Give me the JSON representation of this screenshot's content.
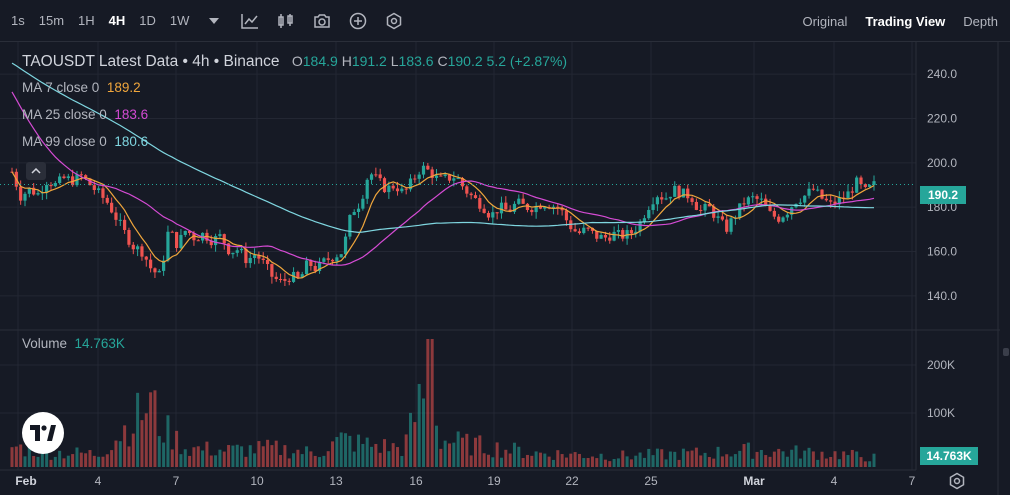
{
  "toolbar": {
    "timeframes": [
      "1s",
      "15m",
      "1H",
      "4H",
      "1D",
      "1W"
    ],
    "active_timeframe": "4H",
    "icons": [
      "chevron-down-icon",
      "indicators-icon",
      "chart-type-icon",
      "screenshot-icon",
      "add-icon",
      "settings-icon"
    ],
    "views": [
      "Original",
      "Trading View",
      "Depth"
    ],
    "active_view": "Trading View"
  },
  "legend": {
    "symbol_line": "TAOUSDT Latest Data • 4h • Binance",
    "o_label": "O",
    "o_value": "184.9",
    "h_label": "H",
    "h_value": "191.2",
    "l_label": "L",
    "l_value": "183.6",
    "c_label": "C",
    "c_value": "190.2",
    "change": "5.2 (+2.87%)",
    "ma7": {
      "label": "MA 7 close 0",
      "value": "189.2",
      "color": "#F0A63C"
    },
    "ma25": {
      "label": "MA 25 close 0",
      "value": "183.6",
      "color": "#D54BD4"
    },
    "ma99": {
      "label": "MA 99 close 0",
      "value": "180.6",
      "color": "#7FD6E0"
    },
    "volume_label": "Volume",
    "volume_value": "14.763K"
  },
  "price_axis": {
    "ticks": [
      "240.0",
      "220.0",
      "200.0",
      "180.0",
      "160.0",
      "140.0"
    ],
    "current_price": "190.2",
    "volume_ticks": [
      "200K",
      "100K"
    ],
    "current_volume": "14.763K"
  },
  "time_axis": {
    "labels": [
      "Feb",
      "4",
      "7",
      "10",
      "13",
      "16",
      "19",
      "22",
      "25",
      "Mar",
      "4",
      "7"
    ]
  },
  "colors": {
    "background": "#161A25",
    "up": "#26A69A",
    "down": "#EF5350",
    "grid": "#232733"
  },
  "chart_data": {
    "type": "candlestick",
    "symbol": "TAOUSDT",
    "interval": "4h",
    "ylim": [
      130,
      250
    ],
    "price_path": [
      [
        0,
        196
      ],
      [
        1,
        185
      ],
      [
        2,
        188
      ],
      [
        3,
        186
      ],
      [
        4,
        192
      ],
      [
        5,
        190
      ],
      [
        6,
        193
      ],
      [
        7,
        192
      ],
      [
        8,
        194
      ],
      [
        9,
        190
      ],
      [
        10,
        186
      ],
      [
        11,
        182
      ],
      [
        12,
        175
      ],
      [
        13,
        168
      ],
      [
        14,
        162
      ],
      [
        15,
        160
      ],
      [
        16,
        152
      ],
      [
        17,
        149
      ],
      [
        18,
        170
      ],
      [
        19,
        163
      ],
      [
        20,
        170
      ],
      [
        21,
        166
      ],
      [
        22,
        168
      ],
      [
        23,
        165
      ],
      [
        24,
        167
      ],
      [
        25,
        160
      ],
      [
        26,
        161
      ],
      [
        27,
        156
      ],
      [
        28,
        159
      ],
      [
        29,
        154
      ],
      [
        30,
        148
      ],
      [
        31,
        146
      ],
      [
        32,
        149
      ],
      [
        33,
        147
      ],
      [
        34,
        155
      ],
      [
        35,
        152
      ],
      [
        36,
        156
      ],
      [
        37,
        158
      ],
      [
        38,
        160
      ],
      [
        39,
        178
      ],
      [
        40,
        182
      ],
      [
        41,
        196
      ],
      [
        42,
        192
      ],
      [
        43,
        188
      ],
      [
        44,
        190
      ],
      [
        45,
        186
      ],
      [
        46,
        192
      ],
      [
        47,
        198
      ],
      [
        48,
        196
      ],
      [
        49,
        192
      ],
      [
        50,
        193
      ],
      [
        51,
        194
      ],
      [
        52,
        188
      ],
      [
        53,
        184
      ],
      [
        54,
        181
      ],
      [
        55,
        176
      ],
      [
        56,
        180
      ],
      [
        57,
        178
      ],
      [
        58,
        182
      ],
      [
        59,
        180
      ],
      [
        60,
        180
      ],
      [
        61,
        182
      ],
      [
        62,
        181
      ],
      [
        63,
        179
      ],
      [
        64,
        172
      ],
      [
        65,
        168
      ],
      [
        66,
        170
      ],
      [
        67,
        167
      ],
      [
        68,
        166
      ],
      [
        69,
        168
      ],
      [
        70,
        167
      ],
      [
        71,
        168
      ],
      [
        72,
        172
      ],
      [
        73,
        180
      ],
      [
        74,
        186
      ],
      [
        75,
        184
      ],
      [
        76,
        188
      ],
      [
        77,
        186
      ],
      [
        78,
        185
      ],
      [
        79,
        178
      ],
      [
        80,
        180
      ],
      [
        81,
        175
      ],
      [
        82,
        170
      ],
      [
        83,
        176
      ],
      [
        84,
        182
      ],
      [
        85,
        184
      ],
      [
        86,
        183
      ],
      [
        87,
        177
      ],
      [
        88,
        175
      ],
      [
        89,
        178
      ],
      [
        90,
        183
      ],
      [
        91,
        185
      ],
      [
        92,
        188
      ],
      [
        93,
        184
      ],
      [
        94,
        181
      ],
      [
        95,
        183
      ],
      [
        96,
        186
      ],
      [
        97,
        191
      ],
      [
        98,
        187
      ],
      [
        99,
        190
      ]
    ],
    "volume_profile": [
      [
        0,
        0.22
      ],
      [
        4,
        0.16
      ],
      [
        10,
        0.14
      ],
      [
        15,
        0.6
      ],
      [
        16,
        0.7
      ],
      [
        17,
        0.45
      ],
      [
        20,
        0.2
      ],
      [
        25,
        0.18
      ],
      [
        30,
        0.2
      ],
      [
        35,
        0.15
      ],
      [
        38,
        0.3
      ],
      [
        40,
        0.25
      ],
      [
        45,
        0.2
      ],
      [
        48,
        1.0
      ],
      [
        49,
        0.3
      ],
      [
        52,
        0.25
      ],
      [
        60,
        0.15
      ],
      [
        70,
        0.12
      ],
      [
        80,
        0.15
      ],
      [
        85,
        0.18
      ],
      [
        90,
        0.16
      ],
      [
        95,
        0.14
      ],
      [
        99,
        0.1
      ]
    ],
    "moving_averages": [
      {
        "name": "MA 7",
        "period": 7,
        "color": "#F0A63C"
      },
      {
        "name": "MA 25",
        "period": 25,
        "color": "#D54BD4"
      },
      {
        "name": "MA 99",
        "period": 99,
        "color": "#7FD6E0"
      }
    ]
  }
}
